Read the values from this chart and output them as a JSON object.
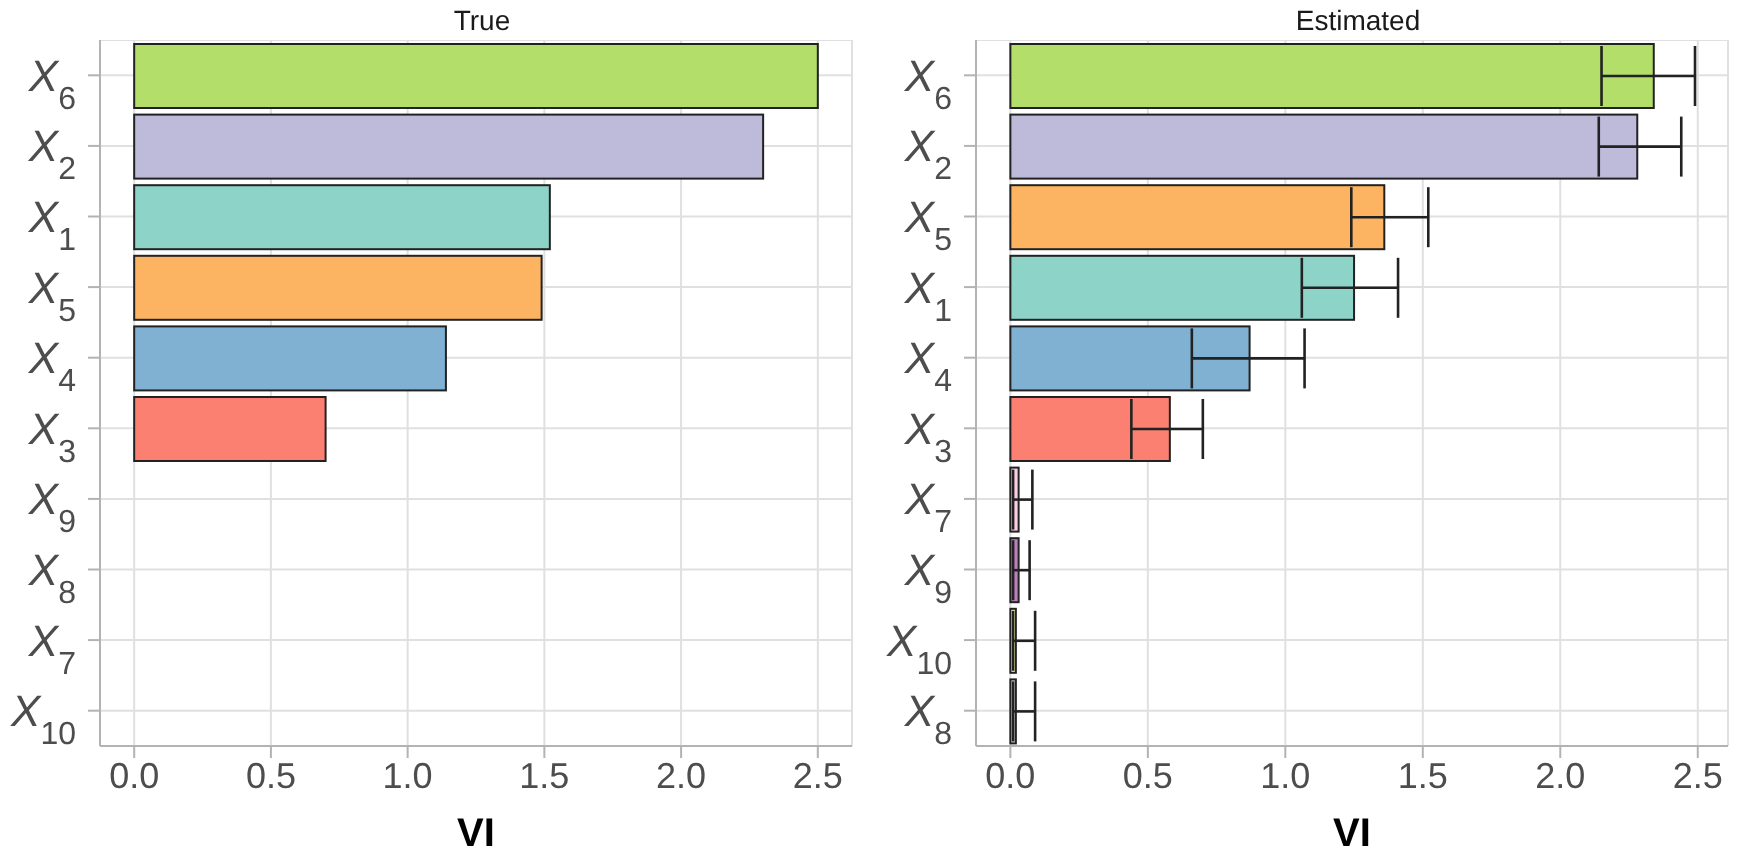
{
  "chart_data": [
    {
      "type": "bar",
      "title": "True",
      "xlabel": "VI",
      "orientation": "horizontal",
      "categories": [
        "X$_{6}$",
        "X$_{2}$",
        "X$_{1}$",
        "X$_{5}$",
        "X$_{4}$",
        "X$_{3}$",
        "X$_{9}$",
        "X$_{8}$",
        "X$_{7}$",
        "X$_{10}$"
      ],
      "values": [
        2.5,
        2.3,
        1.52,
        1.49,
        1.14,
        0.7,
        0,
        0,
        0,
        0
      ],
      "colors": [
        "#b3de69",
        "#bebada",
        "#8dd3c7",
        "#fdb462",
        "#80b1d3",
        "#fb8072",
        "#bc80bd",
        "#d9d9d9",
        "#fccde5",
        "#ffffb3"
      ],
      "xlim": [
        -0.125,
        2.625
      ],
      "xticks": [
        {
          "value": 0,
          "label": "0.0"
        },
        0.5,
        {
          "value": 1,
          "label": "1.0"
        },
        1.5,
        {
          "value": 2,
          "label": "2.0"
        },
        2.5
      ],
      "grid": true
    },
    {
      "type": "bar",
      "title": "Estimated",
      "xlabel": "VI",
      "orientation": "horizontal",
      "categories": [
        "X$_{6}$",
        "X$_{2}$",
        "X$_{5}$",
        "X$_{1}$",
        "X$_{4}$",
        "X$_{3}$",
        "X$_{7}$",
        "X$_{9}$",
        "X$_{10}$",
        "X$_{8}$"
      ],
      "values": [
        2.34,
        2.28,
        1.36,
        1.25,
        0.87,
        0.58,
        0.03,
        0.03,
        0.02,
        0.02
      ],
      "errors": [
        [
          2.15,
          2.49
        ],
        [
          2.14,
          2.44
        ],
        [
          1.24,
          1.52
        ],
        [
          1.06,
          1.41
        ],
        [
          0.66,
          1.07
        ],
        [
          0.44,
          0.7
        ],
        [
          0.01,
          0.08
        ],
        [
          0.01,
          0.07
        ],
        [
          0.01,
          0.09
        ],
        [
          0.01,
          0.09
        ]
      ],
      "colors": [
        "#b3de69",
        "#bebada",
        "#fdb462",
        "#8dd3c7",
        "#80b1d3",
        "#fb8072",
        "#fccde5",
        "#bc80bd",
        "#ffffb3",
        "#d9d9d9"
      ],
      "xlim": [
        -0.125,
        2.61
      ],
      "xticks": [
        {
          "value": 0,
          "label": "0.0"
        },
        0.5,
        {
          "value": 1,
          "label": "1.0"
        },
        1.5,
        {
          "value": 2,
          "label": "2.0"
        },
        2.5
      ],
      "grid": true
    }
  ]
}
